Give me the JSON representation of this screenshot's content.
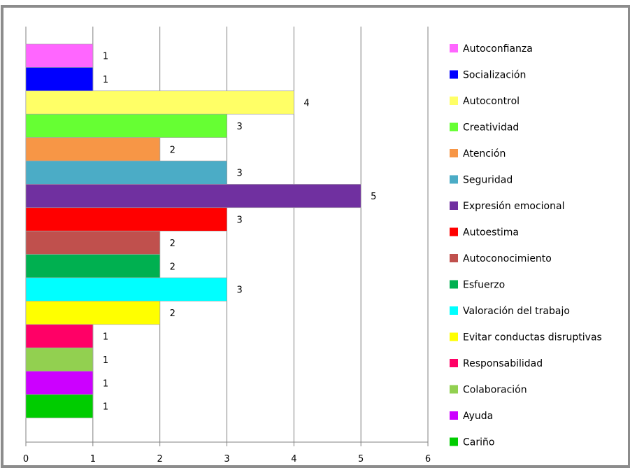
{
  "chart_data": {
    "type": "bar",
    "orientation": "horizontal",
    "xlim": [
      0,
      6
    ],
    "x_ticks": [
      "0",
      "1",
      "2",
      "3",
      "4",
      "5",
      "6"
    ],
    "grid": true,
    "legend_position": "right",
    "bars": [
      {
        "name": "Autoconfianza",
        "value": 1,
        "color": "#FF66FF"
      },
      {
        "name": "Socialización",
        "value": 1,
        "color": "#0000FF"
      },
      {
        "name": "Autocontrol",
        "value": 4,
        "color": "#FFFF66"
      },
      {
        "name": "Creatividad",
        "value": 3,
        "color": "#66FF33"
      },
      {
        "name": "Atención",
        "value": 2,
        "color": "#F79646"
      },
      {
        "name": "Seguridad",
        "value": 3,
        "color": "#4BACC6"
      },
      {
        "name": "Expresión emocional",
        "value": 5,
        "color": "#7030A0"
      },
      {
        "name": "Autoestima",
        "value": 3,
        "color": "#FF0000"
      },
      {
        "name": "Autoconocimiento",
        "value": 2,
        "color": "#C0504D"
      },
      {
        "name": "Esfuerzo",
        "value": 2,
        "color": "#00B050"
      },
      {
        "name": "Valoración del trabajo",
        "value": 3,
        "color": "#00FFFF"
      },
      {
        "name": "Evitar conductas disruptivas",
        "value": 2,
        "color": "#FFFF00"
      },
      {
        "name": "Responsabilidad",
        "value": 1,
        "color": "#FF0066"
      },
      {
        "name": "Colaboración",
        "value": 1,
        "color": "#92D050"
      },
      {
        "name": "Ayuda",
        "value": 1,
        "color": "#CC00FF"
      },
      {
        "name": "Cariño",
        "value": 1,
        "color": "#00CC00"
      }
    ]
  }
}
